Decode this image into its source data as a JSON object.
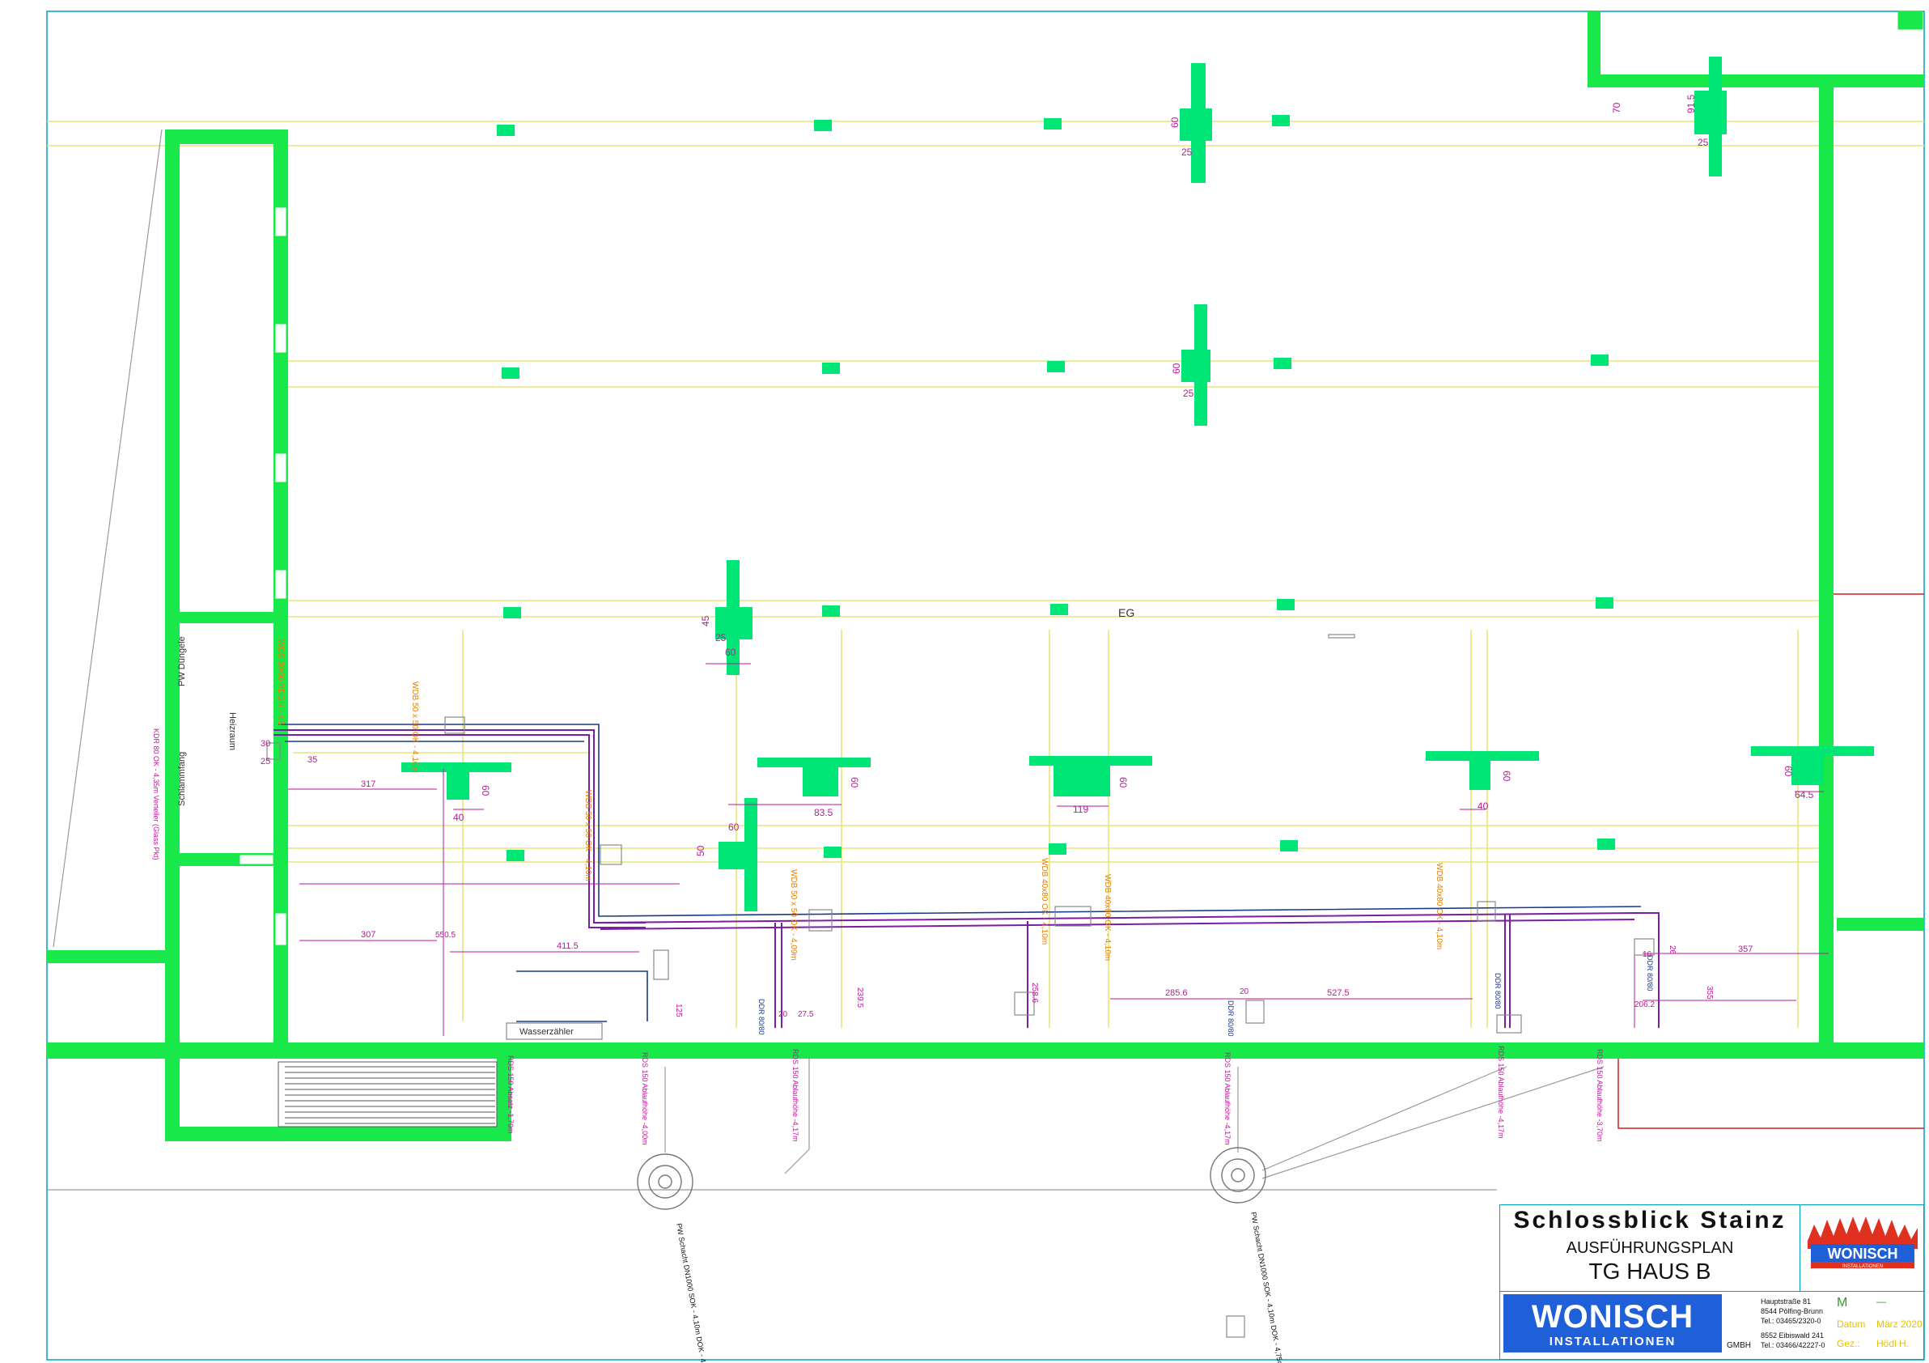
{
  "plan": {
    "level_label": "EG",
    "room_labels": {
      "pw_duengele": "PW Düngele",
      "heizraum": "Heizraum",
      "schlammfang": "Schlammfang",
      "wasserzaehler": "Wasserzähler"
    },
    "dimensions": {
      "top_a1": "60",
      "top_a2": "25",
      "top_b1": "70",
      "top_b2": "91.5",
      "top_b3": "25",
      "mid_a1": "60",
      "mid_a2": "25",
      "eg_1": "45",
      "eg_2": "25",
      "eg_3": "60",
      "beam_1_w": "40",
      "beam_1_h": "60",
      "beam_2_w": "83.5",
      "beam_2_h": "60",
      "beam_3_w": "119",
      "beam_3_h": "60",
      "beam_4_w": "40",
      "beam_4_h": "60",
      "beam_5_w": "64.5",
      "beam_5_h": "60",
      "col_1": "60",
      "col_2": "50",
      "left_1": "30",
      "left_2": "25",
      "left_3": "35",
      "run_1": "317",
      "run_2": "307",
      "run_3": "411.5",
      "run_4": "285.6",
      "run_5": "527.5",
      "run_6": "357",
      "short_1": "20",
      "short_2": "20",
      "short_3": "16",
      "misc_1": "550.5",
      "misc_2": "239.5",
      "misc_3": "258.6",
      "misc_4": "206.2",
      "misc_5": "26",
      "misc_6": "355",
      "misc_7": "125",
      "misc_8": "27.5"
    },
    "pipe_notes": {
      "orange_1": "WDB 50/50 RDGN - 4,5",
      "orange_2": "WDB 50 x 50 OK - 4,10m",
      "orange_3": "WDB 50 x 50 OK - 4,10m",
      "orange_4": "WDB 50 x 50 OK - 4,09m",
      "orange_5": "WDB 40x80 OK - 4,10m",
      "orange_6": "WDB 40x80 OK - 4,10m",
      "orange_7": "WDB 40x80 OK - 4,10m"
    },
    "drain_notes": {
      "rds_1": "RDS 150 Absatz -1,70m",
      "rds_2": "RDS 150 Ablaufhöhe -4,00m",
      "rds_3": "RDS 150 Ablaufhöhe -4,17m",
      "rds_4": "RDS 150 Ablaufhöhe -4,17m",
      "rds_5": "RDS 150 Ablaufhöhe -4,17m",
      "rds_6": "RDS 150 Ablaufhöhe -3,70m",
      "ddr_1": "DDR 80/80",
      "ddr_2": "DDR 80/80",
      "ddr_3": "DDR 80/80",
      "ddr_4": "DDR 80/80",
      "left_vert": "KDR 80 OK - 4,35m Verteiler (Glass Pkt)",
      "shaft_1": "PW Schacht DN1000 SOK - 4,10m DOK - 4,75m T=1,65m",
      "shaft_2": "PW Schacht DN1000 SOK - 4,10m DOK - 4,75m T=1,65m"
    }
  },
  "title_block": {
    "project": "Schlossblick Stainz",
    "plan_type": "AUSFÜHRUNGSPLAN",
    "plan_name": "TG HAUS B",
    "logo_small_text": "WONISCH",
    "logo_small_sub": "INSTALLATIONEN",
    "logo_big_text": "WONISCH",
    "logo_big_sub": "INSTALLATIONEN",
    "gmbh": "GMBH",
    "addr_1": "Hauptstraße 81",
    "addr_2": "8544 Pölfing-Brunn",
    "addr_3": "Tel.: 03465/2320-0",
    "addr_4": "8552 Eibiswald 241",
    "addr_5": "Tel.: 03466/42227-0",
    "scale_label": "M",
    "scale_value": "—",
    "date_label": "Datum",
    "date_value": "März 2020",
    "drawn_label": "Gez.:",
    "drawn_value": "Hödl H."
  },
  "colors": {
    "wall": "#19e84a",
    "slab": "#00e676",
    "grid": "#e6e67a",
    "pipe": "#7a1fa2",
    "dim": "#c0169a",
    "note": "#e67e00",
    "drain": "#1a3a8a",
    "sheet": "#00a0c0",
    "red": "#cc2222"
  }
}
